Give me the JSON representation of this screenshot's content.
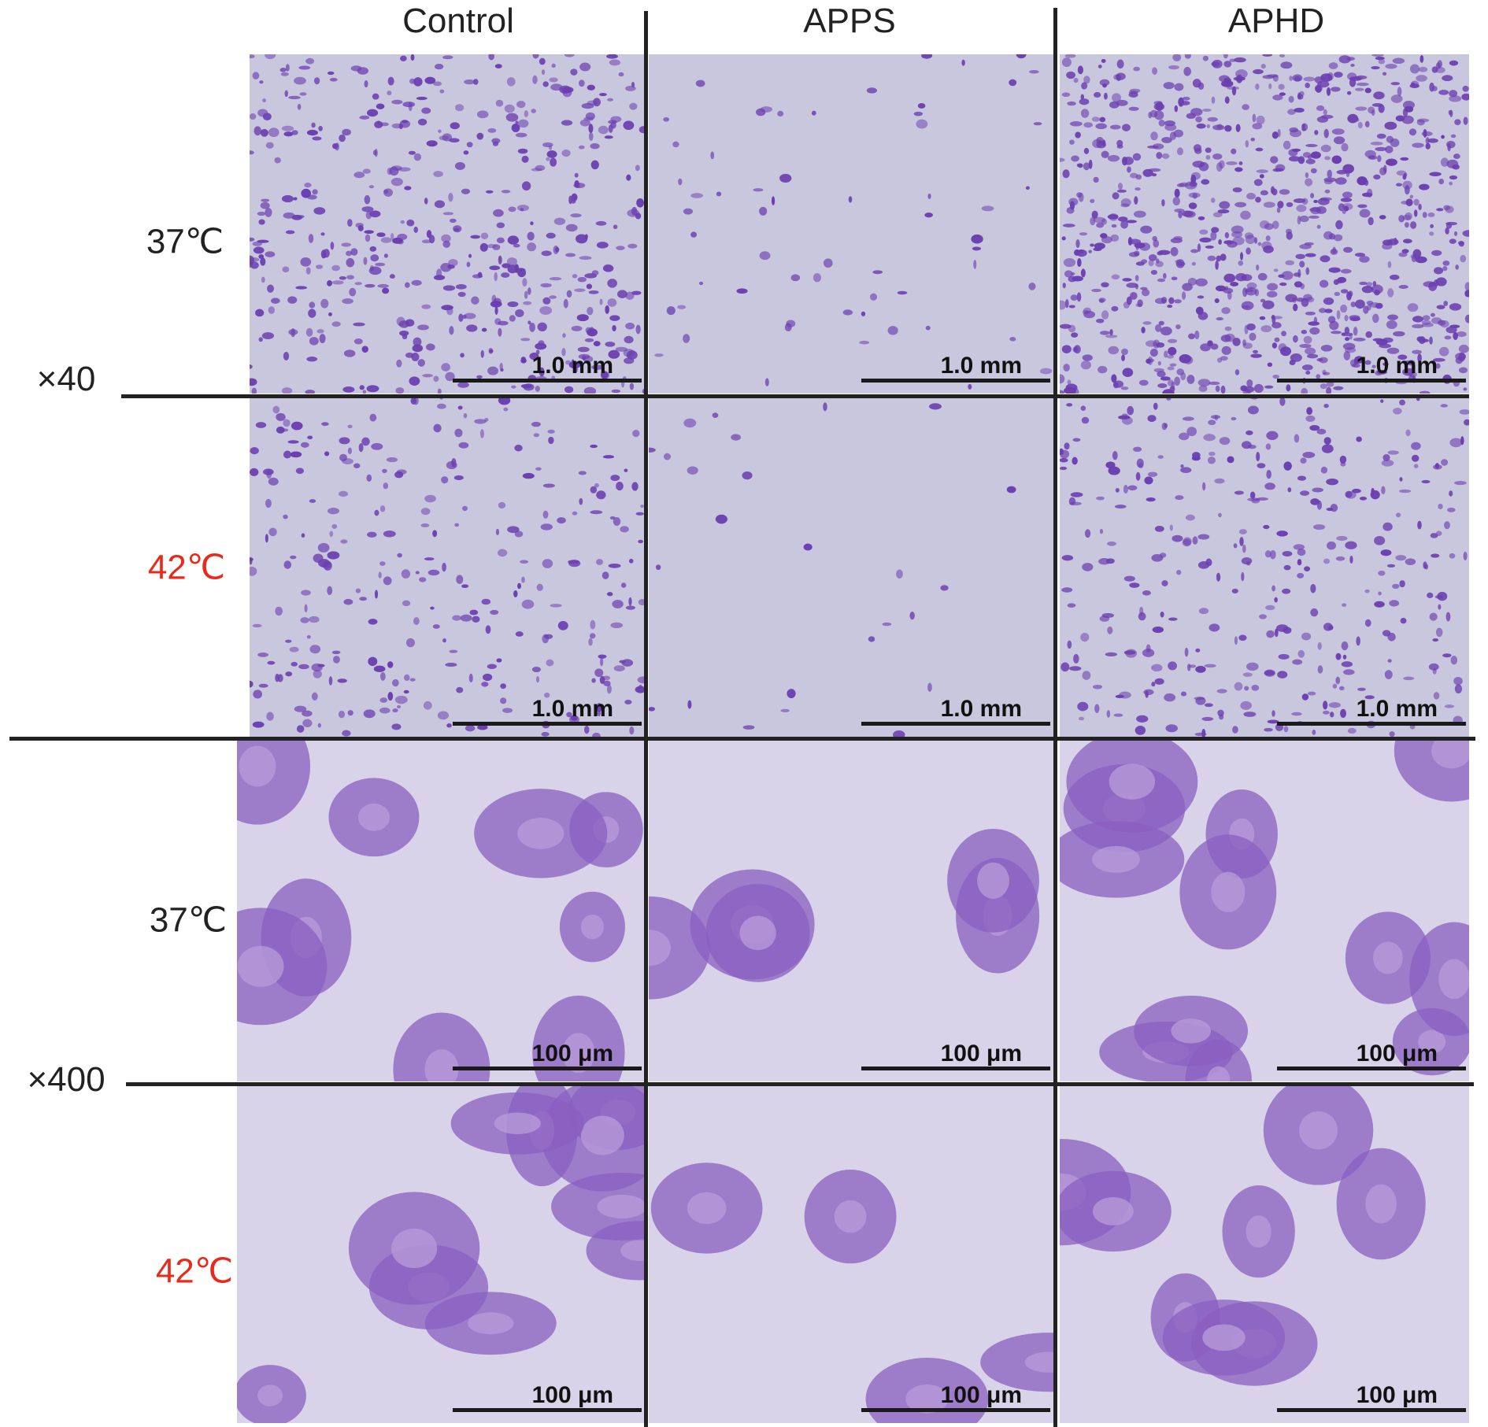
{
  "columns": [
    "Control",
    "APPS",
    "APHD"
  ],
  "row_labels": {
    "r1_temp": "37℃",
    "mag40": "×40",
    "r2_temp": "42℃",
    "r3_temp": "37℃",
    "mag400": "×400",
    "r4_temp": "42℃"
  },
  "scale_bars": {
    "low_mag": "1.0 mm",
    "high_mag": "100 μm"
  },
  "colors": {
    "stain": "#6b3fb0",
    "background": "#c9c7dd",
    "highlight_temp": "#e8291c"
  }
}
